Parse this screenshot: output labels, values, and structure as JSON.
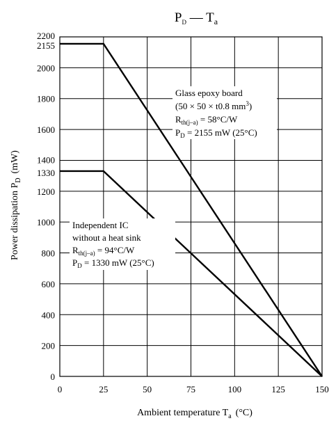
{
  "chart_data": {
    "type": "line",
    "title": {
      "main": "P",
      "main_sub": "D",
      "sep": " — ",
      "second": "T",
      "second_sub": "a"
    },
    "xlabel": {
      "text": "Ambient temperature  T",
      "sub": "a",
      "unit": "(°C)"
    },
    "ylabel": {
      "text": "Power dissipation  P",
      "sub": "D",
      "unit": "(mW)"
    },
    "xlim": [
      0,
      150
    ],
    "ylim": [
      0,
      2200
    ],
    "x_ticks": [
      0,
      25,
      50,
      75,
      100,
      125,
      150
    ],
    "y_ticks": [
      0,
      200,
      400,
      600,
      800,
      1000,
      1200,
      1330,
      1400,
      1600,
      1800,
      2000,
      2155,
      2200
    ],
    "grid": true,
    "series": [
      {
        "points": [
          {
            "x": 0,
            "y": 2155
          },
          {
            "x": 25,
            "y": 2155
          },
          {
            "x": 150,
            "y": 0
          }
        ],
        "annotation": [
          {
            "text": "Glass epoxy board"
          },
          {
            "text": "(50 × 50 × t0.8 mm",
            "sup": "3",
            "text_after": ")"
          },
          {
            "text": "R",
            "sub": "th(j–a)",
            "text_after": " = 58°C/W"
          },
          {
            "text": "P",
            "sub": "D",
            "text_after": " = 2155 mW (25°C)"
          }
        ]
      },
      {
        "points": [
          {
            "x": 0,
            "y": 1330
          },
          {
            "x": 25,
            "y": 1330
          },
          {
            "x": 150,
            "y": 0
          }
        ],
        "annotation": [
          {
            "text": "Independent IC"
          },
          {
            "text": "without a heat sink"
          },
          {
            "text": "R",
            "sub": "th(j–a)",
            "text_after": " = 94°C/W"
          },
          {
            "text": "P",
            "sub": "D",
            "text_after": " = 1330 mW (25°C)"
          }
        ]
      }
    ]
  }
}
